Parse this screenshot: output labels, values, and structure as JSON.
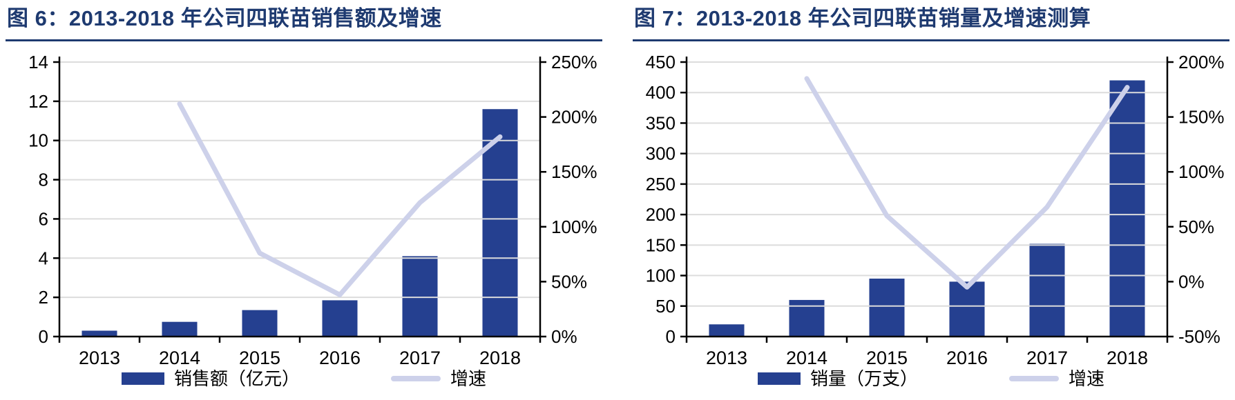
{
  "colors": {
    "bar": "#254090",
    "line": "#cdd1ea",
    "grid": "#dcdcdc",
    "axis": "#000000",
    "title": "#1e3a70"
  },
  "chart_data": [
    {
      "type": "bar+line",
      "title": "图 6：2013-2018 年公司四联苗销售额及增速",
      "categories": [
        "2013",
        "2014",
        "2015",
        "2016",
        "2017",
        "2018"
      ],
      "series": [
        {
          "name": "销售额（亿元）",
          "type": "bar",
          "axis": "left",
          "values": [
            0.3,
            0.75,
            1.35,
            1.85,
            4.1,
            11.6
          ]
        },
        {
          "name": "增速",
          "type": "line",
          "axis": "right",
          "unit": "%",
          "values": [
            null,
            212,
            76,
            38,
            122,
            182
          ]
        }
      ],
      "left_axis": {
        "min": 0,
        "max": 14,
        "step": 2
      },
      "right_axis": {
        "min": 0,
        "max": 250,
        "step": 50,
        "format": "percent"
      },
      "grid": true,
      "legend_position": "bottom"
    },
    {
      "type": "bar+line",
      "title": "图 7：2013-2018 年公司四联苗销量及增速测算",
      "categories": [
        "2013",
        "2014",
        "2015",
        "2016",
        "2017",
        "2018"
      ],
      "series": [
        {
          "name": "销量（万支）",
          "type": "bar",
          "axis": "left",
          "values": [
            20,
            60,
            95,
            90,
            152,
            420
          ]
        },
        {
          "name": "增速",
          "type": "line",
          "axis": "right",
          "unit": "%",
          "values": [
            null,
            185,
            60,
            -5,
            68,
            177
          ]
        }
      ],
      "left_axis": {
        "min": 0,
        "max": 450,
        "step": 50
      },
      "right_axis": {
        "min": -50,
        "max": 200,
        "step": 50,
        "format": "percent"
      },
      "grid": true,
      "legend_position": "bottom"
    }
  ]
}
